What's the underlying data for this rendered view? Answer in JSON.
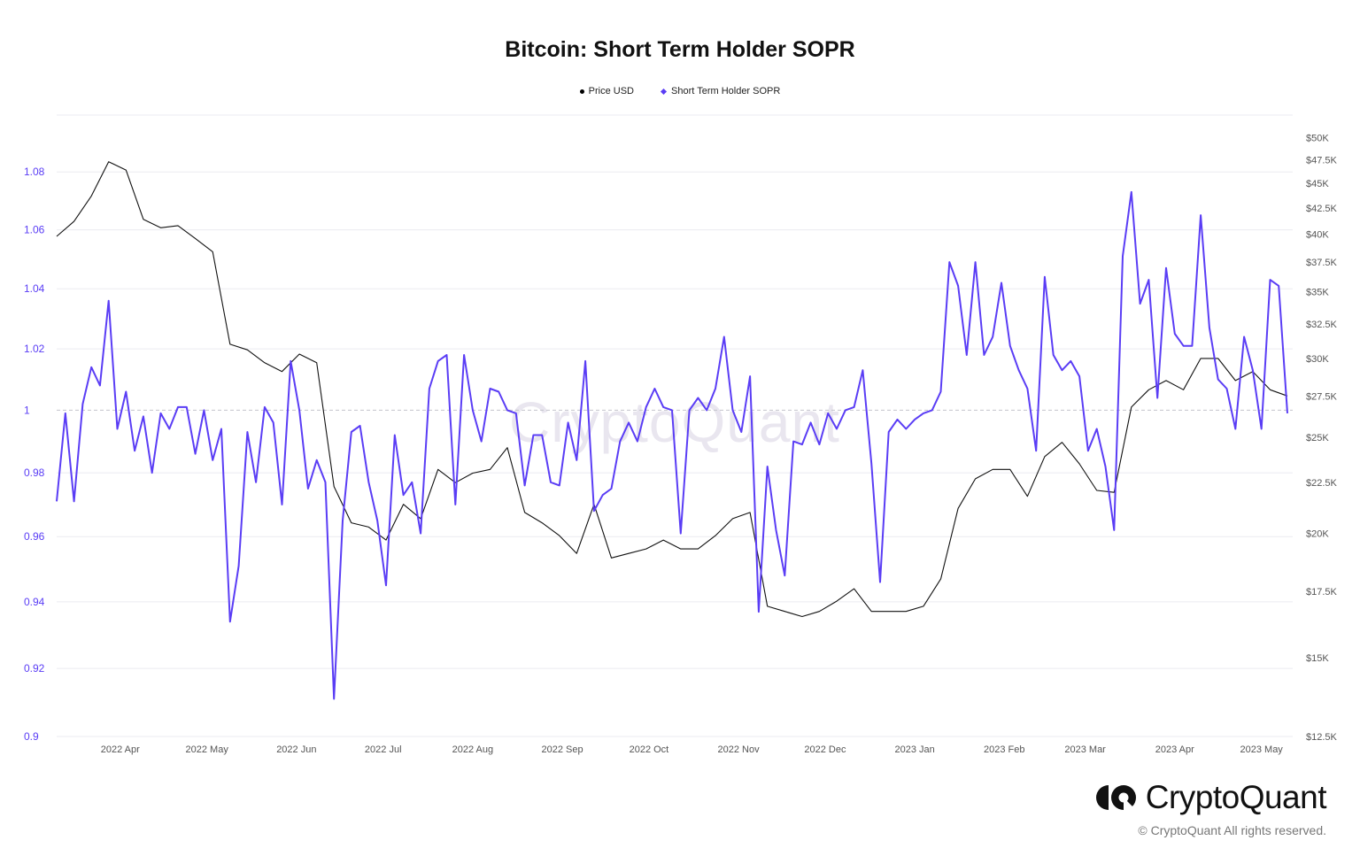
{
  "chart_data": {
    "type": "line",
    "title": "Bitcoin: Short Term Holder SOPR",
    "legend_position": "top-center",
    "legend": [
      {
        "label": "Price USD",
        "marker": "circle",
        "color": "#000000"
      },
      {
        "label": "Short Term Holder SOPR",
        "marker": "diamond",
        "color": "#5a3df5"
      }
    ],
    "grid": true,
    "reference_line": {
      "axis": "left",
      "value": 1,
      "style": "dashed"
    },
    "x_axis": {
      "type": "date",
      "range": [
        "2022-03-10",
        "2023-05-10"
      ],
      "ticks": [
        {
          "label": "2022 Apr",
          "date": "2022-04-01"
        },
        {
          "label": "2022 May",
          "date": "2022-05-01"
        },
        {
          "label": "2022 Jun",
          "date": "2022-06-01"
        },
        {
          "label": "2022 Jul",
          "date": "2022-07-01"
        },
        {
          "label": "2022 Aug",
          "date": "2022-08-01"
        },
        {
          "label": "2022 Sep",
          "date": "2022-09-01"
        },
        {
          "label": "2022 Oct",
          "date": "2022-10-01"
        },
        {
          "label": "2022 Nov",
          "date": "2022-11-01"
        },
        {
          "label": "2022 Dec",
          "date": "2022-12-01"
        },
        {
          "label": "2023 Jan",
          "date": "2023-01-01"
        },
        {
          "label": "2023 Feb",
          "date": "2023-02-01"
        },
        {
          "label": "2023 Mar",
          "date": "2023-03-01"
        },
        {
          "label": "2023 Apr",
          "date": "2023-04-01"
        },
        {
          "label": "2023 May",
          "date": "2023-05-01"
        }
      ]
    },
    "left_axis": {
      "scale": "log",
      "range": [
        0.9,
        1.1
      ],
      "color": "#5a3df5",
      "ticks": [
        {
          "label": "1.08",
          "value": 1.08
        },
        {
          "label": "1.06",
          "value": 1.06
        },
        {
          "label": "1.04",
          "value": 1.04
        },
        {
          "label": "1.02",
          "value": 1.02
        },
        {
          "label": "1",
          "value": 1
        },
        {
          "label": "0.98",
          "value": 0.98
        },
        {
          "label": "0.96",
          "value": 0.96
        },
        {
          "label": "0.94",
          "value": 0.94
        },
        {
          "label": "0.92",
          "value": 0.92
        },
        {
          "label": "0.9",
          "value": 0.9
        }
      ]
    },
    "right_axis": {
      "scale": "log",
      "range": [
        12500,
        52700
      ],
      "ticks": [
        {
          "label": "$50K",
          "value": 50000
        },
        {
          "label": "$47.5K",
          "value": 47500
        },
        {
          "label": "$45K",
          "value": 45000
        },
        {
          "label": "$42.5K",
          "value": 42500
        },
        {
          "label": "$40K",
          "value": 40000
        },
        {
          "label": "$37.5K",
          "value": 37500
        },
        {
          "label": "$35K",
          "value": 35000
        },
        {
          "label": "$32.5K",
          "value": 32500
        },
        {
          "label": "$30K",
          "value": 30000
        },
        {
          "label": "$27.5K",
          "value": 27500
        },
        {
          "label": "$25K",
          "value": 25000
        },
        {
          "label": "$22.5K",
          "value": 22500
        },
        {
          "label": "$20K",
          "value": 20000
        },
        {
          "label": "$17.5K",
          "value": 17500
        },
        {
          "label": "$15K",
          "value": 15000
        },
        {
          "label": "$12.5K",
          "value": 12500
        }
      ]
    },
    "series": [
      {
        "name": "Price USD",
        "axis": "right",
        "color": "#111111",
        "x": [
          "2022-03-10",
          "2022-03-16",
          "2022-03-22",
          "2022-03-28",
          "2022-04-03",
          "2022-04-09",
          "2022-04-15",
          "2022-04-21",
          "2022-04-27",
          "2022-05-03",
          "2022-05-09",
          "2022-05-15",
          "2022-05-21",
          "2022-05-27",
          "2022-06-02",
          "2022-06-08",
          "2022-06-14",
          "2022-06-20",
          "2022-06-26",
          "2022-07-02",
          "2022-07-08",
          "2022-07-14",
          "2022-07-20",
          "2022-07-26",
          "2022-08-01",
          "2022-08-07",
          "2022-08-13",
          "2022-08-19",
          "2022-08-25",
          "2022-08-31",
          "2022-09-06",
          "2022-09-12",
          "2022-09-18",
          "2022-09-24",
          "2022-09-30",
          "2022-10-06",
          "2022-10-12",
          "2022-10-18",
          "2022-10-24",
          "2022-10-30",
          "2022-11-05",
          "2022-11-11",
          "2022-11-17",
          "2022-11-23",
          "2022-11-29",
          "2022-12-05",
          "2022-12-11",
          "2022-12-17",
          "2022-12-23",
          "2022-12-29",
          "2023-01-04",
          "2023-01-10",
          "2023-01-16",
          "2023-01-22",
          "2023-01-28",
          "2023-02-03",
          "2023-02-09",
          "2023-02-15",
          "2023-02-21",
          "2023-02-27",
          "2023-03-05",
          "2023-03-11",
          "2023-03-17",
          "2023-03-23",
          "2023-03-29",
          "2023-04-04",
          "2023-04-10",
          "2023-04-16",
          "2023-04-22",
          "2023-04-28",
          "2023-05-04",
          "2023-05-10"
        ],
        "y": [
          39800,
          41200,
          43700,
          47300,
          46400,
          41400,
          40600,
          40800,
          39600,
          38400,
          31000,
          30600,
          29700,
          29100,
          30300,
          29700,
          22300,
          20500,
          20300,
          19700,
          21400,
          20700,
          23200,
          22500,
          23000,
          23200,
          24400,
          21000,
          20500,
          19900,
          19100,
          21400,
          18900,
          19100,
          19300,
          19700,
          19300,
          19300,
          19900,
          20700,
          21000,
          16900,
          16700,
          16500,
          16700,
          17100,
          17600,
          16700,
          16700,
          16700,
          16900,
          18000,
          21200,
          22700,
          23200,
          23200,
          21800,
          23900,
          24700,
          23500,
          22100,
          22000,
          26800,
          27900,
          28500,
          27900,
          30000,
          30000,
          28500,
          29100,
          27900,
          27500
        ]
      },
      {
        "name": "Short Term Holder SOPR",
        "axis": "left",
        "color": "#5a3df5",
        "x": [
          "2022-03-10",
          "2022-03-13",
          "2022-03-16",
          "2022-03-19",
          "2022-03-22",
          "2022-03-25",
          "2022-03-28",
          "2022-03-31",
          "2022-04-03",
          "2022-04-06",
          "2022-04-09",
          "2022-04-12",
          "2022-04-15",
          "2022-04-18",
          "2022-04-21",
          "2022-04-24",
          "2022-04-27",
          "2022-04-30",
          "2022-05-03",
          "2022-05-06",
          "2022-05-09",
          "2022-05-12",
          "2022-05-15",
          "2022-05-18",
          "2022-05-21",
          "2022-05-24",
          "2022-05-27",
          "2022-05-30",
          "2022-06-02",
          "2022-06-05",
          "2022-06-08",
          "2022-06-11",
          "2022-06-14",
          "2022-06-17",
          "2022-06-20",
          "2022-06-23",
          "2022-06-26",
          "2022-06-29",
          "2022-07-02",
          "2022-07-05",
          "2022-07-08",
          "2022-07-11",
          "2022-07-14",
          "2022-07-17",
          "2022-07-20",
          "2022-07-23",
          "2022-07-26",
          "2022-07-29",
          "2022-08-01",
          "2022-08-04",
          "2022-08-07",
          "2022-08-10",
          "2022-08-13",
          "2022-08-16",
          "2022-08-19",
          "2022-08-22",
          "2022-08-25",
          "2022-08-28",
          "2022-08-31",
          "2022-09-03",
          "2022-09-06",
          "2022-09-09",
          "2022-09-12",
          "2022-09-15",
          "2022-09-18",
          "2022-09-21",
          "2022-09-24",
          "2022-09-27",
          "2022-09-30",
          "2022-10-03",
          "2022-10-06",
          "2022-10-09",
          "2022-10-12",
          "2022-10-15",
          "2022-10-18",
          "2022-10-21",
          "2022-10-24",
          "2022-10-27",
          "2022-10-30",
          "2022-11-02",
          "2022-11-05",
          "2022-11-08",
          "2022-11-11",
          "2022-11-14",
          "2022-11-17",
          "2022-11-20",
          "2022-11-23",
          "2022-11-26",
          "2022-11-29",
          "2022-12-02",
          "2022-12-05",
          "2022-12-08",
          "2022-12-11",
          "2022-12-14",
          "2022-12-17",
          "2022-12-20",
          "2022-12-23",
          "2022-12-26",
          "2022-12-29",
          "2023-01-01",
          "2023-01-04",
          "2023-01-07",
          "2023-01-10",
          "2023-01-13",
          "2023-01-16",
          "2023-01-19",
          "2023-01-22",
          "2023-01-25",
          "2023-01-28",
          "2023-01-31",
          "2023-02-03",
          "2023-02-06",
          "2023-02-09",
          "2023-02-12",
          "2023-02-15",
          "2023-02-18",
          "2023-02-21",
          "2023-02-24",
          "2023-02-27",
          "2023-03-02",
          "2023-03-05",
          "2023-03-08",
          "2023-03-11",
          "2023-03-14",
          "2023-03-17",
          "2023-03-20",
          "2023-03-23",
          "2023-03-26",
          "2023-03-29",
          "2023-04-01",
          "2023-04-04",
          "2023-04-07",
          "2023-04-10",
          "2023-04-13",
          "2023-04-16",
          "2023-04-19",
          "2023-04-22",
          "2023-04-25",
          "2023-04-28",
          "2023-05-01",
          "2023-05-04",
          "2023-05-07",
          "2023-05-10"
        ],
        "y": [
          0.971,
          0.999,
          0.971,
          1.002,
          1.014,
          1.008,
          1.036,
          0.994,
          1.006,
          0.987,
          0.998,
          0.98,
          0.999,
          0.994,
          1.001,
          1.001,
          0.986,
          1.0,
          0.984,
          0.994,
          0.934,
          0.951,
          0.993,
          0.977,
          1.001,
          0.996,
          0.97,
          1.016,
          1.0,
          0.975,
          0.984,
          0.977,
          0.911,
          0.965,
          0.993,
          0.995,
          0.977,
          0.965,
          0.945,
          0.992,
          0.973,
          0.977,
          0.961,
          1.007,
          1.016,
          1.018,
          0.97,
          1.018,
          1.0,
          0.99,
          1.007,
          1.006,
          1.0,
          0.999,
          0.976,
          0.992,
          0.992,
          0.977,
          0.976,
          0.996,
          0.984,
          1.016,
          0.968,
          0.973,
          0.975,
          0.99,
          0.996,
          0.99,
          1.001,
          1.007,
          1.001,
          1.0,
          0.961,
          1.0,
          1.004,
          1.0,
          1.007,
          1.024,
          1.0,
          0.993,
          1.011,
          0.937,
          0.982,
          0.962,
          0.948,
          0.99,
          0.989,
          0.996,
          0.989,
          0.999,
          0.994,
          1.0,
          1.001,
          1.013,
          0.983,
          0.946,
          0.993,
          0.997,
          0.994,
          0.997,
          0.999,
          1.0,
          1.006,
          1.049,
          1.041,
          1.018,
          1.049,
          1.018,
          1.024,
          1.042,
          1.021,
          1.013,
          1.007,
          0.987,
          1.044,
          1.018,
          1.013,
          1.016,
          1.011,
          0.987,
          0.994,
          0.982,
          0.962,
          1.051,
          1.073,
          1.035,
          1.043,
          1.004,
          1.047,
          1.025,
          1.021,
          1.021,
          1.065,
          1.027,
          1.01,
          1.007,
          0.994,
          1.024,
          1.013,
          0.994,
          1.043,
          1.041,
          0.999
        ]
      }
    ]
  },
  "watermark": "CryptoQuant",
  "brand": {
    "name": "CryptoQuant",
    "copyright": "© CryptoQuant All rights reserved."
  }
}
